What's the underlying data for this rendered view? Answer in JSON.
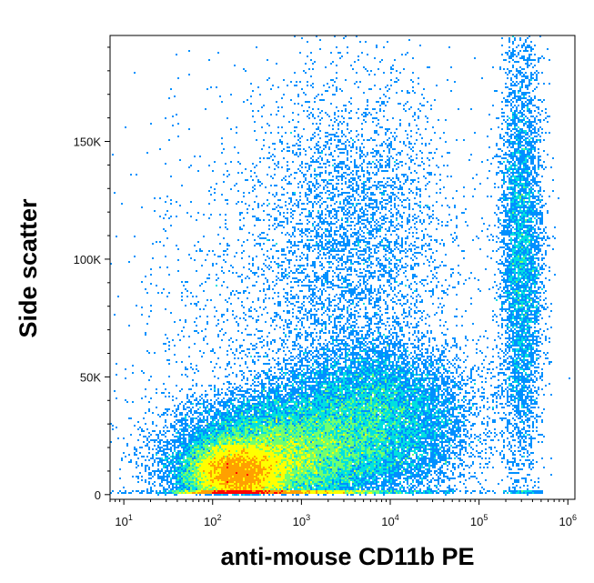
{
  "chart_data": {
    "type": "scatter",
    "plot_style": "flow cytometry pseudocolor density dot plot",
    "xlabel": "anti-mouse CD11b PE",
    "ylabel": "Side scatter",
    "x_scale": "log",
    "xlim": [
      7,
      1200000
    ],
    "ylim": [
      -2000,
      195000
    ],
    "x_ticks": [
      {
        "base": "10",
        "exp": "1",
        "value": 10
      },
      {
        "base": "10",
        "exp": "2",
        "value": 100
      },
      {
        "base": "10",
        "exp": "3",
        "value": 1000
      },
      {
        "base": "10",
        "exp": "4",
        "value": 10000
      },
      {
        "base": "10",
        "exp": "5",
        "value": 100000
      },
      {
        "base": "10",
        "exp": "6",
        "value": 1000000
      }
    ],
    "y_ticks": [
      {
        "label": "0",
        "value": 0
      },
      {
        "label": "50K",
        "value": 50000
      },
      {
        "label": "100K",
        "value": 100000
      },
      {
        "label": "150K",
        "value": 150000
      }
    ],
    "grid": false,
    "legend": "none",
    "density_colors": [
      "#0000ff",
      "#0090ff",
      "#00e0e0",
      "#70ff70",
      "#ffff00",
      "#ffa000",
      "#ff0000"
    ],
    "populations": [
      {
        "x_center": 180,
        "y_center": 9000,
        "x_spread_decades": 0.28,
        "y_spread": 7000,
        "relative_count": 0.3
      },
      {
        "x_center": 600,
        "y_center": 16000,
        "x_spread_decades": 0.55,
        "y_spread": 12000,
        "relative_count": 0.33
      },
      {
        "x_center": 6000,
        "y_center": 32000,
        "x_spread_decades": 0.55,
        "y_spread": 16000,
        "relative_count": 0.2
      },
      {
        "x_center": 4000,
        "y_center": 110000,
        "x_spread_decades": 0.55,
        "y_spread": 35000,
        "relative_count": 0.06
      },
      {
        "x_center": 300000,
        "y_center": 100000,
        "x_spread_decades": 0.12,
        "y_spread": 45000,
        "relative_count": 0.08
      },
      {
        "x_center": 500,
        "y_center": 60000,
        "x_spread_decades": 0.9,
        "y_spread": 60000,
        "relative_count": 0.03
      }
    ]
  }
}
